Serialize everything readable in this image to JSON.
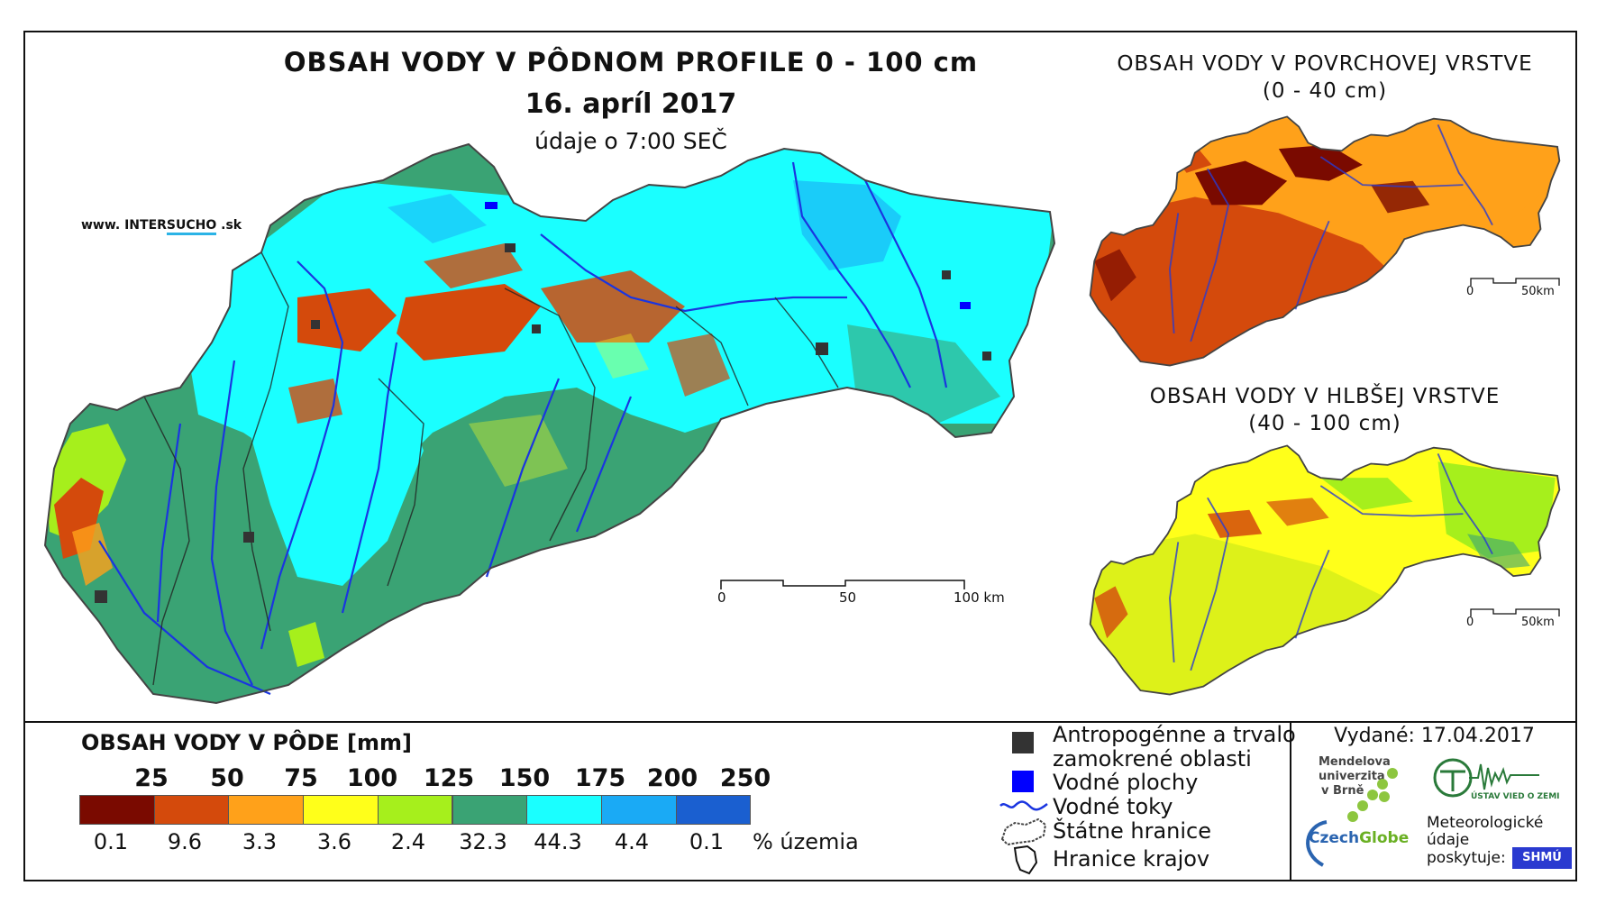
{
  "map": {
    "title": "OBSAH VODY V PÔDNOM PROFILE 0 - 100 cm",
    "date": "16. apríl 2017",
    "time": "údaje o 7:00 SEČ",
    "website_prefix": "www. INTER",
    "website_highlight": "SUCHO",
    "website_suffix": " .sk",
    "scale_labels": [
      "0",
      "50",
      "100 km"
    ]
  },
  "insets": [
    {
      "title": "OBSAH VODY V POVRCHOVEJ VRSTVE",
      "depth": "(0 - 40 cm)",
      "scale_labels": [
        "0",
        "50km"
      ]
    },
    {
      "title": "OBSAH VODY V HLBŠEJ VRSTVE",
      "depth": "(40 - 100 cm)",
      "scale_labels": [
        "0",
        "50km"
      ]
    }
  ],
  "legend": {
    "title": "OBSAH VODY V PÔDE [mm]",
    "values": [
      "25",
      "50",
      "75",
      "100",
      "125",
      "150",
      "175",
      "200",
      "250"
    ],
    "classes": [
      {
        "color": "#7a0a00",
        "pct": "0.1"
      },
      {
        "color": "#d44a0c",
        "pct": "9.6"
      },
      {
        "color": "#ffa11a",
        "pct": "3.3"
      },
      {
        "color": "#ffff1a",
        "pct": "3.6"
      },
      {
        "color": "#a6ef1c",
        "pct": "2.4"
      },
      {
        "color": "#3aa374",
        "pct": "32.3"
      },
      {
        "color": "#1affff",
        "pct": "44.3"
      },
      {
        "color": "#1aaaf5",
        "pct": "4.4"
      },
      {
        "color": "#1a5fd0",
        "pct": "0.1"
      }
    ],
    "pct_unit": "% územia"
  },
  "key": {
    "anthropogenic_line1": "Antropogénne a trvalo",
    "anthropogenic_line2": "zamokrené oblasti",
    "water_bodies": "Vodné plochy",
    "rivers": "Vodné toky",
    "state_border": "Štátne hranice",
    "region_border": "Hranice krajov"
  },
  "issued": "Vydané: 17.04.2017",
  "logos": {
    "mendel_line1": "Mendelova",
    "mendel_line2": "univerzita",
    "mendel_line3": "v Brně",
    "czechglobe_a": "Czech",
    "czechglobe_b": "Globe",
    "uvgz": "ÚSTAV VIED O ZEMI",
    "met_line1": "Meteorologické",
    "met_line2": "údaje",
    "met_line3": "poskytuje:",
    "shmu": "SHMÚ"
  }
}
